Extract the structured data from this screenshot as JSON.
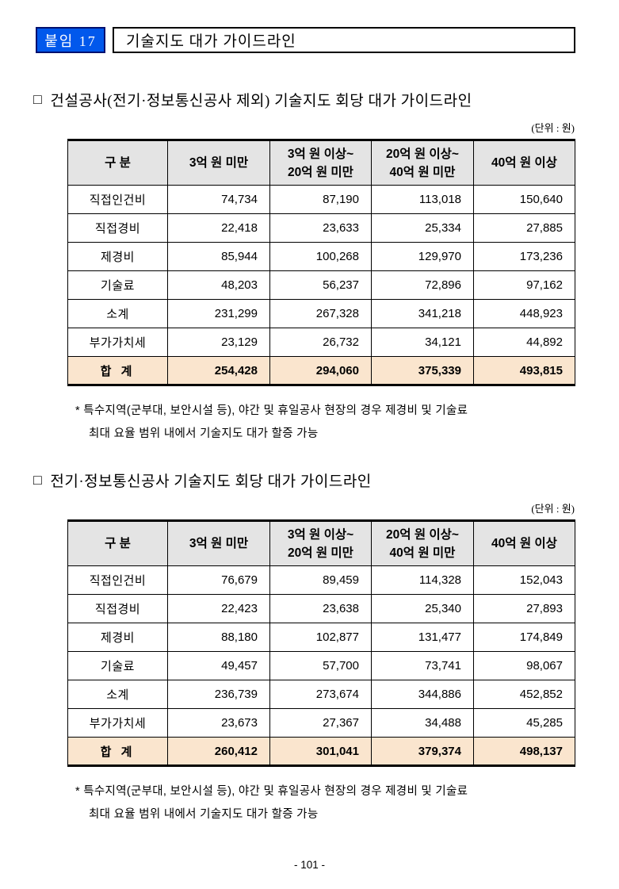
{
  "page": {
    "badge_label": "붙임 17",
    "doc_title": "기술지도 대가 가이드라인",
    "page_number": "- 101 -",
    "colors": {
      "badge_bg": "#0158EC",
      "badge_border": "#02106E",
      "header_bg": "#E4E4E4",
      "total_bg": "#FAE5CE"
    }
  },
  "sections": [
    {
      "marker": "□",
      "heading": "건설공사(전기·정보통신공사 제외) 기술지도 회당 대가 가이드라인",
      "unit_label": "(단위 : 원)",
      "table": {
        "columns": [
          {
            "line1": "구 분",
            "line2": ""
          },
          {
            "line1": "3억 원 미만",
            "line2": ""
          },
          {
            "line1": "3억 원 이상~",
            "line2": "20억 원 미만"
          },
          {
            "line1": "20억 원 이상~",
            "line2": "40억 원 미만"
          },
          {
            "line1": "40억 원 이상",
            "line2": ""
          }
        ],
        "rows": [
          {
            "label": "직접인건비",
            "values": [
              "74,734",
              "87,190",
              "113,018",
              "150,640"
            ]
          },
          {
            "label": "직접경비",
            "values": [
              "22,418",
              "23,633",
              "25,334",
              "27,885"
            ]
          },
          {
            "label": "제경비",
            "values": [
              "85,944",
              "100,268",
              "129,970",
              "173,236"
            ]
          },
          {
            "label": "기술료",
            "values": [
              "48,203",
              "56,237",
              "72,896",
              "97,162"
            ]
          },
          {
            "label": "소계",
            "values": [
              "231,299",
              "267,328",
              "341,218",
              "448,923"
            ]
          },
          {
            "label": "부가가치세",
            "values": [
              "23,129",
              "26,732",
              "34,121",
              "44,892"
            ]
          }
        ],
        "total": {
          "label": "합 계",
          "values": [
            "254,428",
            "294,060",
            "375,339",
            "493,815"
          ]
        }
      },
      "footnote": {
        "line1": "* 특수지역(군부대, 보안시설 등), 야간 및 휴일공사 현장의 경우 제경비 및 기술료",
        "line2": "최대 요율 범위 내에서 기술지도 대가 할증 가능"
      }
    },
    {
      "marker": "□",
      "heading": "전기·정보통신공사 기술지도 회당 대가 가이드라인",
      "unit_label": "(단위 : 원)",
      "table": {
        "columns": [
          {
            "line1": "구 분",
            "line2": ""
          },
          {
            "line1": "3억 원 미만",
            "line2": ""
          },
          {
            "line1": "3억 원 이상~",
            "line2": "20억 원 미만"
          },
          {
            "line1": "20억 원 이상~",
            "line2": "40억 원 미만"
          },
          {
            "line1": "40억 원 이상",
            "line2": ""
          }
        ],
        "rows": [
          {
            "label": "직접인건비",
            "values": [
              "76,679",
              "89,459",
              "114,328",
              "152,043"
            ]
          },
          {
            "label": "직접경비",
            "values": [
              "22,423",
              "23,638",
              "25,340",
              "27,893"
            ]
          },
          {
            "label": "제경비",
            "values": [
              "88,180",
              "102,877",
              "131,477",
              "174,849"
            ]
          },
          {
            "label": "기술료",
            "values": [
              "49,457",
              "57,700",
              "73,741",
              "98,067"
            ]
          },
          {
            "label": "소계",
            "values": [
              "236,739",
              "273,674",
              "344,886",
              "452,852"
            ]
          },
          {
            "label": "부가가치세",
            "values": [
              "23,673",
              "27,367",
              "34,488",
              "45,285"
            ]
          }
        ],
        "total": {
          "label": "합 계",
          "values": [
            "260,412",
            "301,041",
            "379,374",
            "498,137"
          ]
        }
      },
      "footnote": {
        "line1": "* 특수지역(군부대, 보안시설 등), 야간 및 휴일공사 현장의 경우 제경비 및 기술료",
        "line2": "최대 요율 범위 내에서 기술지도 대가 할증 가능"
      }
    }
  ]
}
